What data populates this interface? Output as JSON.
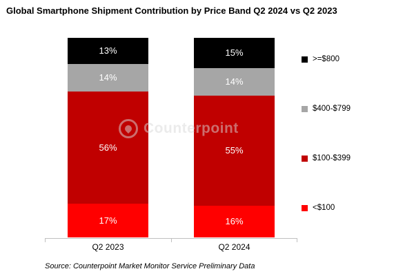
{
  "title": "Global Smartphone Shipment Contribution by Price Band Q2 2024 vs Q2 2023",
  "source": "Source: Counterpoint Market Monitor Service Preliminary Data",
  "watermark": "Counterpoint",
  "chart_data": {
    "type": "bar",
    "subtype": "stacked-100-percent",
    "title": "Global Smartphone Shipment Contribution by Price Band Q2 2024 vs Q2 2023",
    "categories": [
      "Q2 2023",
      "Q2 2024"
    ],
    "series": [
      {
        "name": "<$100",
        "color": "#FF0000",
        "values": [
          17,
          16
        ]
      },
      {
        "name": "$100-$399",
        "color": "#C00000",
        "values": [
          56,
          55
        ]
      },
      {
        "name": "$400-$799",
        "color": "#A6A6A6",
        "values": [
          14,
          14
        ]
      },
      {
        "name": ">=$800",
        "color": "#000000",
        "values": [
          13,
          15
        ]
      }
    ],
    "value_suffix": "%",
    "ylim": [
      0,
      100
    ],
    "grid": false,
    "legend_position": "right",
    "legend_order_top_to_bottom": [
      ">=$800",
      "$400-$799",
      "$100-$399",
      "<$100"
    ]
  }
}
